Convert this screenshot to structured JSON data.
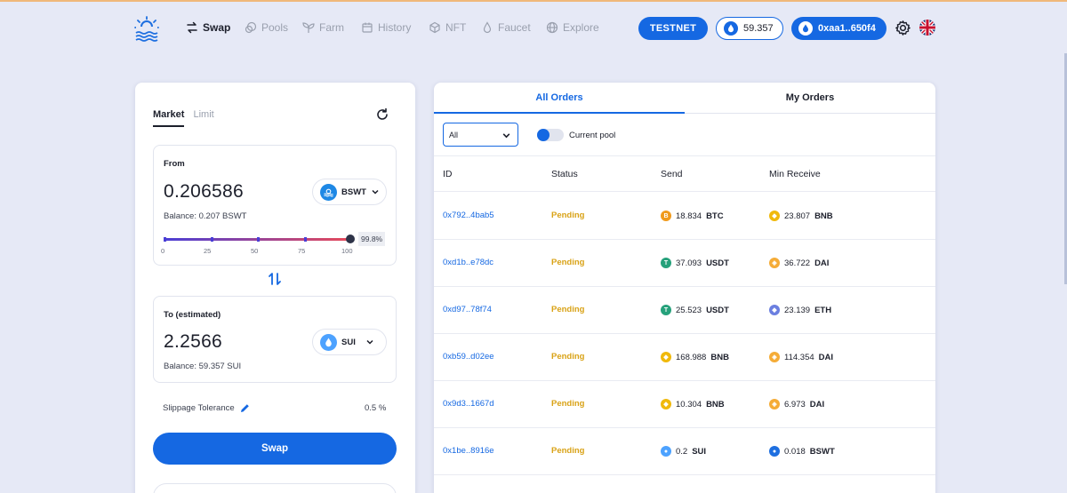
{
  "nav": {
    "items": [
      {
        "label": "Swap",
        "icon": "swap-arrows-icon",
        "active": true
      },
      {
        "label": "Pools",
        "icon": "pools-icon",
        "active": false
      },
      {
        "label": "Farm",
        "icon": "sprout-icon",
        "active": false
      },
      {
        "label": "History",
        "icon": "calendar-icon",
        "active": false
      },
      {
        "label": "NFT",
        "icon": "cube-icon",
        "active": false
      },
      {
        "label": "Faucet",
        "icon": "droplet-icon",
        "active": false
      },
      {
        "label": "Explore",
        "icon": "globe-icon",
        "active": false
      }
    ],
    "network": "TESTNET",
    "balance": "59.357",
    "address": "0xaa1..650f4"
  },
  "swap": {
    "tab_market": "Market",
    "tab_limit": "Limit",
    "from_label": "From",
    "from_amount": "0.206586",
    "from_token": "BSWT",
    "from_balance": "Balance: 0.207 BSWT",
    "slider_percent": "99.8%",
    "slider_value": 99.8,
    "slider_ticks": [
      "0",
      "25",
      "50",
      "75",
      "100"
    ],
    "to_label": "To (estimated)",
    "to_amount": "2.2566",
    "to_token": "SUI",
    "to_balance": "Balance: 59.357 SUI",
    "slippage_label": "Slippage Tolerance",
    "slippage_value": "0.5 %",
    "swap_button": "Swap"
  },
  "orders": {
    "tab_all": "All Orders",
    "tab_my": "My Orders",
    "filter_value": "All",
    "toggle_label": "Current pool",
    "headers": [
      "ID",
      "Status",
      "Send",
      "Min Receive"
    ],
    "rows": [
      {
        "id": "0x792..4bab5",
        "status": "Pending",
        "send_amt": "18.834",
        "send_sym": "BTC",
        "recv_amt": "23.807",
        "recv_sym": "BNB"
      },
      {
        "id": "0xd1b..e78dc",
        "status": "Pending",
        "send_amt": "37.093",
        "send_sym": "USDT",
        "recv_amt": "36.722",
        "recv_sym": "DAI"
      },
      {
        "id": "0xd97..78f74",
        "status": "Pending",
        "send_amt": "25.523",
        "send_sym": "USDT",
        "recv_amt": "23.139",
        "recv_sym": "ETH"
      },
      {
        "id": "0xb59..d02ee",
        "status": "Pending",
        "send_amt": "168.988",
        "send_sym": "BNB",
        "recv_amt": "114.354",
        "recv_sym": "DAI"
      },
      {
        "id": "0x9d3..1667d",
        "status": "Pending",
        "send_amt": "10.304",
        "send_sym": "BNB",
        "recv_amt": "6.973",
        "recv_sym": "DAI"
      },
      {
        "id": "0x1be..8916e",
        "status": "Pending",
        "send_amt": "0.2",
        "send_sym": "SUI",
        "recv_amt": "0.018",
        "recv_sym": "BSWT"
      }
    ]
  },
  "colors": {
    "accent": "#1568e2",
    "pending": "#d9a216",
    "BTC": "#f09a1c",
    "USDT": "#26a17b",
    "BNB": "#f0b90b",
    "DAI": "#f5ac37",
    "ETH": "#6b7fe0",
    "SUI": "#4da2ff",
    "BSWT": "#1e6fe0"
  }
}
